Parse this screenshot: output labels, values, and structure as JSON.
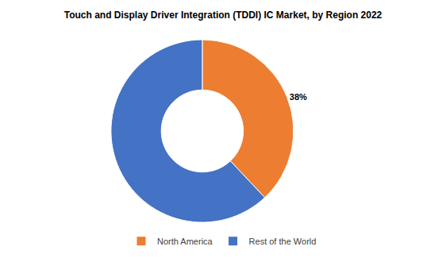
{
  "chart_data": {
    "type": "pie",
    "title": "Touch and Display Driver Integration (TDDI) IC Market, by Region 2022",
    "categories": [
      "North America",
      "Rest of the World"
    ],
    "values": [
      38,
      62
    ],
    "value_labels": [
      "38%",
      null
    ],
    "colors": [
      "#ed7d31",
      "#4472c4"
    ],
    "legend": "bottom"
  }
}
